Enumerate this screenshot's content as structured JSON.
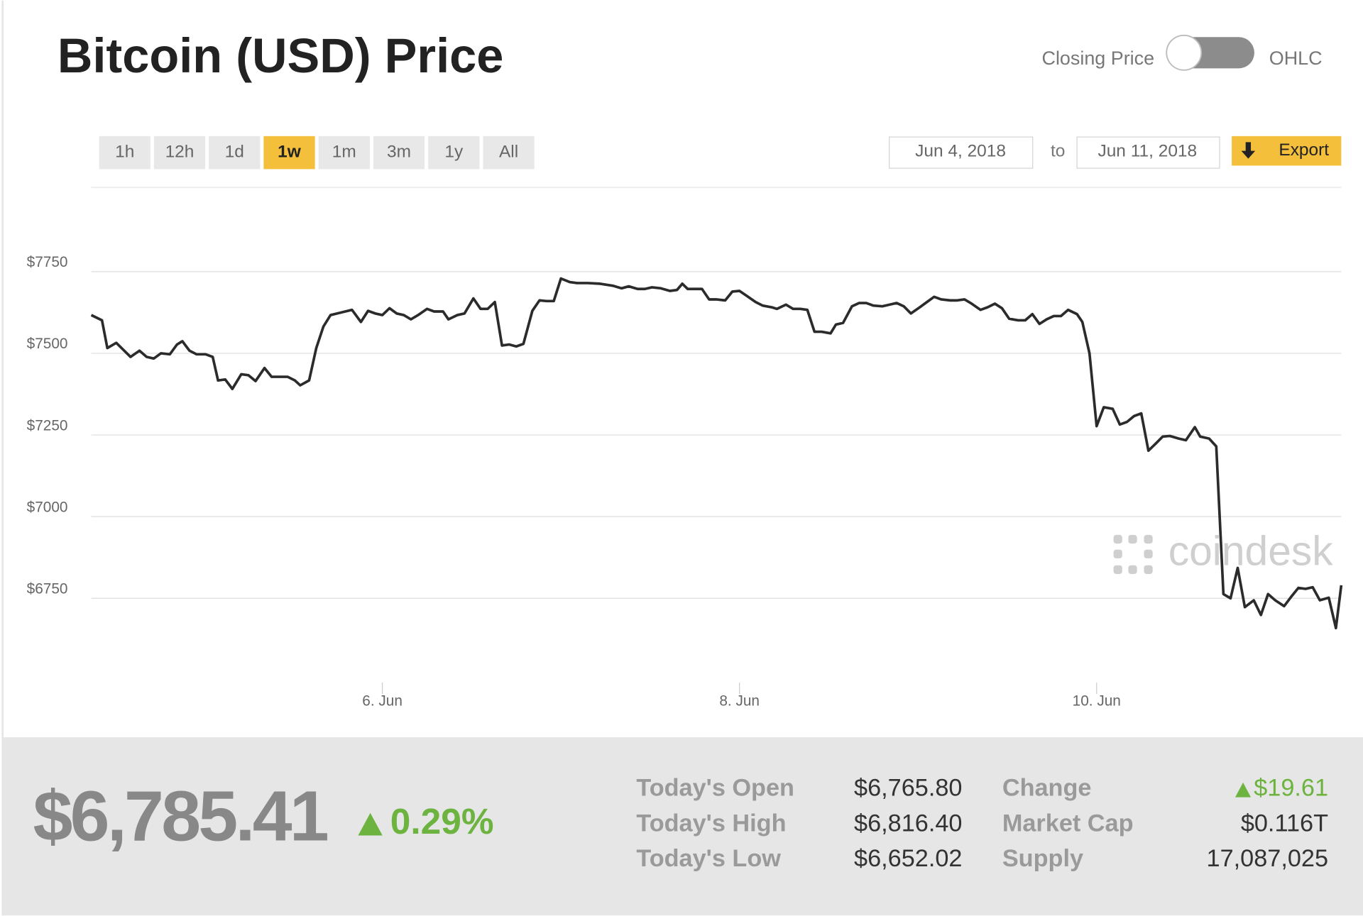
{
  "header": {
    "title": "Bitcoin (USD) Price",
    "toggle_left": "Closing Price",
    "toggle_right": "OHLC"
  },
  "controls": {
    "ranges": [
      "1h",
      "12h",
      "1d",
      "1w",
      "1m",
      "3m",
      "1y",
      "All"
    ],
    "active_index": 3,
    "date_from": "Jun 4, 2018",
    "date_sep": "to",
    "date_to": "Jun 11, 2018",
    "export": "Export"
  },
  "chart_data": {
    "type": "line",
    "color": "#2b2b2b",
    "grid": true,
    "watermark": "coindesk",
    "xlim": [
      4.37,
      11.37
    ],
    "xticks": [
      {
        "value": 6,
        "label": "6. Jun"
      },
      {
        "value": 8,
        "label": "8. Jun"
      },
      {
        "value": 10,
        "label": "10. Jun"
      }
    ],
    "ylim": [
      6500,
      8000
    ],
    "yticks": [
      {
        "value": 6750,
        "label": "$6750"
      },
      {
        "value": 7000,
        "label": "$7000"
      },
      {
        "value": 7250,
        "label": "$7250"
      },
      {
        "value": 7500,
        "label": "$7500"
      },
      {
        "value": 7750,
        "label": "$7750"
      }
    ],
    "x": [
      4.37,
      4.43,
      4.46,
      4.51,
      4.59,
      4.64,
      4.68,
      4.72,
      4.76,
      4.81,
      4.85,
      4.88,
      4.92,
      4.96,
      5.01,
      5.05,
      5.08,
      5.12,
      5.16,
      5.21,
      5.25,
      5.29,
      5.34,
      5.38,
      5.43,
      5.47,
      5.51,
      5.54,
      5.59,
      5.63,
      5.67,
      5.71,
      5.77,
      5.83,
      5.88,
      5.92,
      5.96,
      6.0,
      6.04,
      6.08,
      6.12,
      6.16,
      6.2,
      6.25,
      6.29,
      6.34,
      6.37,
      6.42,
      6.46,
      6.51,
      6.55,
      6.59,
      6.63,
      6.67,
      6.71,
      6.75,
      6.79,
      6.84,
      6.88,
      6.92,
      6.96,
      7.0,
      7.05,
      7.09,
      7.15,
      7.22,
      7.29,
      7.34,
      7.38,
      7.43,
      7.47,
      7.51,
      7.56,
      7.61,
      7.65,
      7.68,
      7.71,
      7.75,
      7.79,
      7.83,
      7.87,
      7.92,
      7.96,
      8.0,
      8.04,
      8.09,
      8.13,
      8.18,
      8.21,
      8.26,
      8.3,
      8.34,
      8.38,
      8.42,
      8.46,
      8.51,
      8.54,
      8.58,
      8.63,
      8.67,
      8.71,
      8.75,
      8.8,
      8.84,
      8.88,
      8.92,
      8.96,
      9.01,
      9.05,
      9.09,
      9.13,
      9.18,
      9.22,
      9.26,
      9.3,
      9.35,
      9.39,
      9.43,
      9.47,
      9.51,
      9.56,
      9.6,
      9.64,
      9.68,
      9.72,
      9.76,
      9.8,
      9.84,
      9.89,
      9.92,
      9.96,
      10.0,
      10.04,
      10.09,
      10.13,
      10.17,
      10.21,
      10.25,
      10.29,
      10.33,
      10.37,
      10.41,
      10.46,
      10.5,
      10.55,
      10.58,
      10.63,
      10.67,
      10.71,
      10.75,
      10.79,
      10.83,
      10.88,
      10.92,
      10.96,
      11.0,
      11.05,
      11.09,
      11.13,
      11.17,
      11.21,
      11.25,
      11.3,
      11.34,
      11.37
    ],
    "values": [
      7617,
      7601,
      7516,
      7532,
      7489,
      7508,
      7489,
      7484,
      7500,
      7497,
      7527,
      7537,
      7508,
      7497,
      7497,
      7489,
      7417,
      7420,
      7391,
      7436,
      7433,
      7415,
      7455,
      7428,
      7428,
      7428,
      7417,
      7402,
      7417,
      7516,
      7582,
      7617,
      7625,
      7633,
      7596,
      7630,
      7622,
      7617,
      7638,
      7622,
      7617,
      7604,
      7617,
      7636,
      7628,
      7628,
      7604,
      7617,
      7622,
      7668,
      7636,
      7636,
      7657,
      7524,
      7527,
      7521,
      7529,
      7630,
      7662,
      7660,
      7660,
      7729,
      7718,
      7715,
      7715,
      7713,
      7707,
      7699,
      7705,
      7697,
      7697,
      7702,
      7699,
      7691,
      7694,
      7713,
      7697,
      7697,
      7697,
      7665,
      7665,
      7662,
      7689,
      7691,
      7676,
      7657,
      7646,
      7641,
      7636,
      7649,
      7636,
      7636,
      7633,
      7566,
      7566,
      7561,
      7588,
      7593,
      7644,
      7654,
      7654,
      7646,
      7644,
      7649,
      7654,
      7644,
      7622,
      7641,
      7657,
      7673,
      7665,
      7662,
      7662,
      7665,
      7652,
      7633,
      7641,
      7652,
      7638,
      7606,
      7601,
      7601,
      7620,
      7590,
      7604,
      7614,
      7614,
      7633,
      7620,
      7596,
      7500,
      7277,
      7335,
      7330,
      7282,
      7290,
      7308,
      7316,
      7202,
      7223,
      7245,
      7247,
      7239,
      7234,
      7274,
      7245,
      7239,
      7215,
      6763,
      6750,
      6843,
      6723,
      6744,
      6699,
      6763,
      6744,
      6726,
      6755,
      6782,
      6779,
      6784,
      6744,
      6752,
      6659,
      6790
    ]
  },
  "stats": {
    "price": "$6,785.41",
    "change_pct": "0.29%",
    "rows": [
      [
        "Today's Open",
        "$6,765.80",
        "Change",
        "$19.61"
      ],
      [
        "Today's High",
        "$6,816.40",
        "Market Cap",
        "$0.116T"
      ],
      [
        "Today's Low",
        "$6,652.02",
        "Supply",
        "17,087,025"
      ]
    ]
  }
}
